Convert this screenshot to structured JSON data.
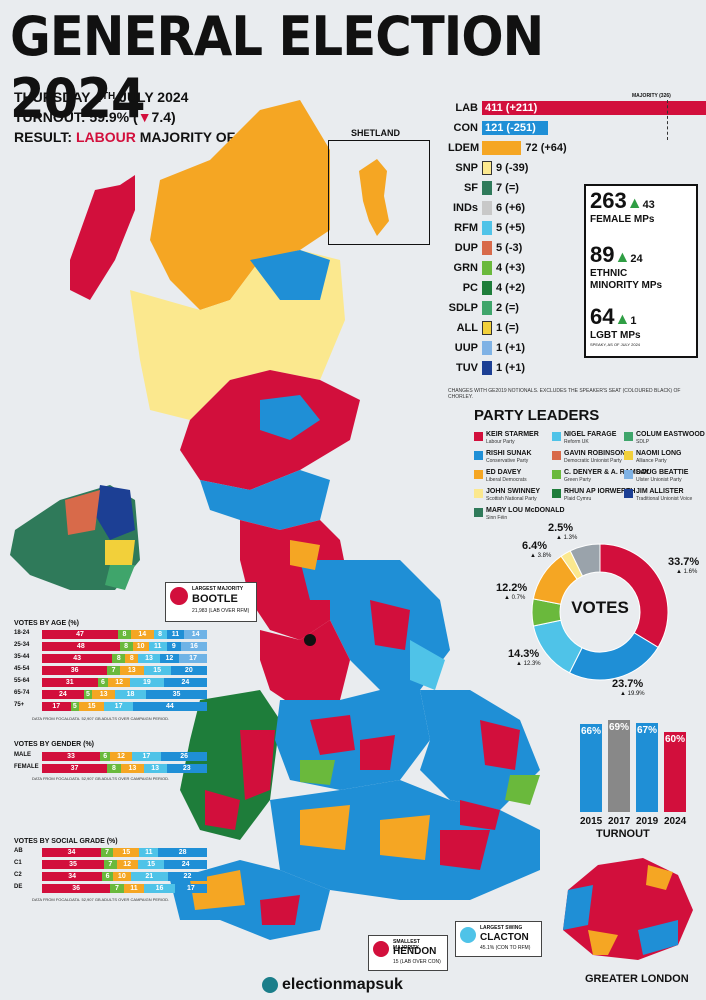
{
  "title": "GENERAL ELECTION 2024",
  "date": {
    "pre": "THURSDAY 4",
    "sup": "TH",
    "post": " JULY 2024"
  },
  "turnout": {
    "label": "TURNOUT: 59.9% (",
    "change": "7.4",
    "close": ")"
  },
  "result": {
    "label": "RESULT: ",
    "party": "LABOUR",
    "rest": " MAJORITY OF 172"
  },
  "shetland_label": "SHETLAND",
  "majority_label": "MAJORITY (326)",
  "colors": {
    "lab": "#d20f3c",
    "con": "#1f8fd6",
    "ldem": "#f5a623",
    "snp": "#fbe88e",
    "sf": "#2f7a5a",
    "ind": "#c8c8c8",
    "rfm": "#4fc3e8",
    "dup": "#d86a4a",
    "grn": "#6ab93c",
    "pc": "#1e7d3a",
    "sdlp": "#3fa56b",
    "all": "#f2d03a",
    "uup": "#7fb2e5",
    "tuv": "#1c3f94",
    "speaker": "#111111"
  },
  "seats": [
    {
      "label": "LAB",
      "value": 411,
      "change": "(+211)",
      "color": "#d20f3c",
      "text_inside": true
    },
    {
      "label": "CON",
      "value": 121,
      "change": "(-251)",
      "color": "#1f8fd6",
      "text_inside": true
    },
    {
      "label": "LDEM",
      "value": 72,
      "change": "(+64)",
      "color": "#f5a623",
      "text_inside": false
    },
    {
      "label": "SNP",
      "value": 9,
      "change": "(-39)",
      "color": "#fbe88e",
      "text_inside": false
    },
    {
      "label": "SF",
      "value": 7,
      "change": "(=)",
      "color": "#2f7a5a",
      "text_inside": false
    },
    {
      "label": "INDs",
      "value": 6,
      "change": "(+6)",
      "color": "#c8c8c8",
      "text_inside": false
    },
    {
      "label": "RFM",
      "value": 5,
      "change": "(+5)",
      "color": "#4fc3e8",
      "text_inside": false
    },
    {
      "label": "DUP",
      "value": 5,
      "change": "(-3)",
      "color": "#d86a4a",
      "text_inside": false
    },
    {
      "label": "GRN",
      "value": 4,
      "change": "(+3)",
      "color": "#6ab93c",
      "text_inside": false
    },
    {
      "label": "PC",
      "value": 4,
      "change": "(+2)",
      "color": "#1e7d3a",
      "text_inside": false
    },
    {
      "label": "SDLP",
      "value": 2,
      "change": "(=)",
      "color": "#3fa56b",
      "text_inside": false
    },
    {
      "label": "ALL",
      "value": 1,
      "change": "(=)",
      "color": "#f2d03a",
      "text_inside": false
    },
    {
      "label": "UUP",
      "value": 1,
      "change": "(+1)",
      "color": "#7fb2e5",
      "text_inside": false
    },
    {
      "label": "TUV",
      "value": 1,
      "change": "(+1)",
      "color": "#1c3f94",
      "text_inside": false
    }
  ],
  "seats_note": "CHANGES WITH GE2019 NOTIONALS. EXCLUDES THE SPEAKER'S SEAT (COLOURED BLACK) OF CHORLEY.",
  "stats": [
    {
      "number": "263",
      "change": "43",
      "label1": "FEMALE MPs",
      "label2": ""
    },
    {
      "number": "89",
      "change": "24",
      "label1": "ETHNIC",
      "label2": "MINORITY MPs"
    },
    {
      "number": "64",
      "change": "1",
      "label1": "LGBT MPs",
      "label2": ""
    }
  ],
  "stats_note": "SPEAKY, AS OF JULY 2024",
  "leaders_title": "PARTY LEADERS",
  "leaders": [
    {
      "name": "KEIR STARMER",
      "party": "Labour Party",
      "color": "#d20f3c"
    },
    {
      "name": "RISHI SUNAK",
      "party": "Conservative Party",
      "color": "#1f8fd6"
    },
    {
      "name": "ED DAVEY",
      "party": "Liberal Democrats",
      "color": "#f5a623"
    },
    {
      "name": "JOHN SWINNEY",
      "party": "Scottish National Party",
      "color": "#fbe88e"
    },
    {
      "name": "MARY LOU McDONALD",
      "party": "Sinn Féin",
      "color": "#2f7a5a"
    },
    {
      "name": "NIGEL FARAGE",
      "party": "Reform UK",
      "color": "#4fc3e8"
    },
    {
      "name": "GAVIN ROBINSON",
      "party": "Democratic Unionist Party",
      "color": "#d86a4a"
    },
    {
      "name": "C. DENYER & A. RAMSAY",
      "party": "Green Party",
      "color": "#6ab93c"
    },
    {
      "name": "RHUN AP IORWERTH",
      "party": "Plaid Cymru",
      "color": "#1e7d3a"
    },
    {
      "name": "COLUM EASTWOOD",
      "party": "SDLP",
      "color": "#3fa56b"
    },
    {
      "name": "NAOMI LONG",
      "party": "Alliance Party",
      "color": "#f2d03a"
    },
    {
      "name": "DOUG BEATTIE",
      "party": "Ulster Unionist Party",
      "color": "#7fb2e5"
    },
    {
      "name": "JIM ALLISTER",
      "party": "Traditional Unionist Voice",
      "color": "#1c3f94"
    }
  ],
  "votes_title": "VOTES",
  "vote_share": [
    {
      "party": "LAB",
      "pct": 33.7,
      "label": "33.7%",
      "change": "1.6%",
      "color": "#d20f3c"
    },
    {
      "party": "CON",
      "pct": 23.7,
      "label": "23.7%",
      "change": "19.9%",
      "color": "#1f8fd6"
    },
    {
      "party": "RFM",
      "pct": 14.3,
      "label": "14.3%",
      "change": "12.3%",
      "color": "#4fc3e8"
    },
    {
      "party": "GRN",
      "pct": 6.4,
      "label": "6.4%",
      "change": "3.8%",
      "color": "#6ab93c"
    },
    {
      "party": "LDEM",
      "pct": 12.2,
      "label": "12.2%",
      "change": "0.7%",
      "color": "#f5a623"
    },
    {
      "party": "SNP",
      "pct": 2.5,
      "label": "2.5%",
      "change": "1.3%",
      "color": "#fbe88e"
    },
    {
      "party": "OTH",
      "pct": 7.2,
      "label": "",
      "change": "",
      "color": "#9aa3ab"
    }
  ],
  "chart_data": [
    {
      "type": "bar",
      "title": "TURNOUT",
      "categories": [
        "2015",
        "2017",
        "2019",
        "2024"
      ],
      "values": [
        66,
        69,
        67,
        60
      ],
      "labels": [
        "66%",
        "69%",
        "67%",
        "60%"
      ],
      "colors": [
        "#1f8fd6",
        "#888888",
        "#1f8fd6",
        "#d20f3c"
      ],
      "ylim": [
        0,
        75
      ]
    }
  ],
  "age_title": "VOTES BY AGE (%)",
  "age_rows": [
    {
      "label": "18-24",
      "segs": [
        47,
        8,
        14,
        8,
        11,
        14
      ]
    },
    {
      "label": "25-34",
      "segs": [
        48,
        8,
        10,
        11,
        9,
        16
      ]
    },
    {
      "label": "35-44",
      "segs": [
        43,
        8,
        8,
        13,
        12,
        17
      ]
    },
    {
      "label": "45-54",
      "segs": [
        36,
        7,
        13,
        15,
        20
      ]
    },
    {
      "label": "55-64",
      "segs": [
        31,
        6,
        12,
        19,
        24
      ]
    },
    {
      "label": "65-74",
      "segs": [
        24,
        5,
        13,
        18,
        35
      ]
    },
    {
      "label": "75+",
      "segs": [
        17,
        5,
        15,
        17,
        44
      ]
    }
  ],
  "gender_title": "VOTES BY GENDER (%)",
  "gender_rows": [
    {
      "label": "MALE",
      "segs": [
        33,
        6,
        12,
        17,
        26
      ]
    },
    {
      "label": "FEMALE",
      "segs": [
        37,
        8,
        13,
        13,
        23
      ]
    }
  ],
  "grade_title": "VOTES BY SOCIAL GRADE (%)",
  "grade_rows": [
    {
      "label": "AB",
      "segs": [
        34,
        7,
        15,
        11,
        28
      ]
    },
    {
      "label": "C1",
      "segs": [
        35,
        7,
        12,
        15,
        24
      ]
    },
    {
      "label": "C2",
      "segs": [
        34,
        6,
        10,
        21,
        22
      ]
    },
    {
      "label": "DE",
      "segs": [
        36,
        7,
        11,
        16,
        17
      ]
    }
  ],
  "seg_colors": [
    "#d20f3c",
    "#6ab93c",
    "#f5a623",
    "#4fc3e8",
    "#1f8fd6",
    "#1f8fd6"
  ],
  "source_note": "DATA FROM FOCALDATA. 52,907 GB ADULTS OVER CAMPAIGN PERIOD.",
  "callouts": {
    "largest_majority": {
      "head": "LARGEST MAJORITY",
      "seat": "BOOTLE",
      "detail": "21,983 (LAB OVER RFM)"
    },
    "smallest_majority": {
      "head": "SMALLEST MAJORITY",
      "seat": "HENDON",
      "detail": "15 (LAB OVER CON)"
    },
    "largest_swing": {
      "head": "LARGEST SWING",
      "seat": "CLACTON",
      "detail": "45.1% (CON TO RFM)"
    }
  },
  "greater_london_label": "GREATER LONDON",
  "brand": "electionmapsuk"
}
